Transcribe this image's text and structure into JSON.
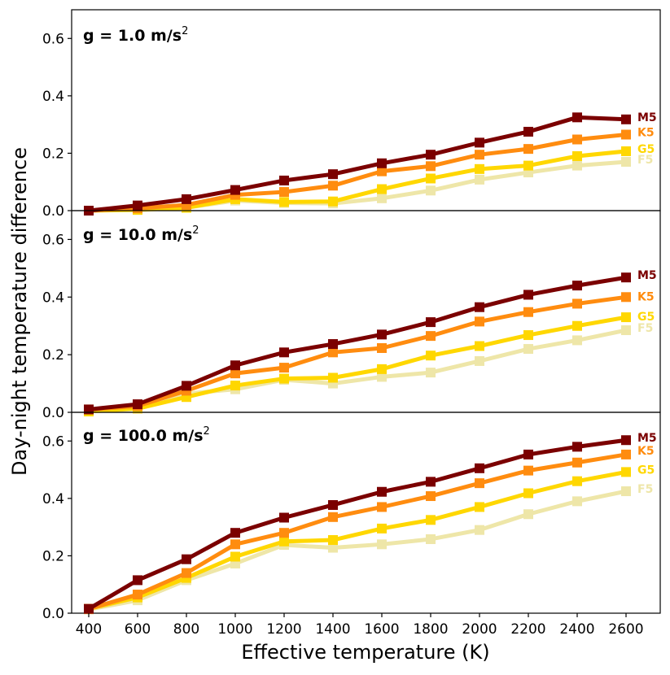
{
  "chart_data": {
    "type": "line",
    "xlabel": "Effective temperature (K)",
    "ylabel": "Day-night temperature difference",
    "x": [
      400,
      600,
      800,
      1000,
      1200,
      1400,
      1600,
      1800,
      2000,
      2200,
      2400,
      2600
    ],
    "x_tick_labels": [
      "400",
      "600",
      "800",
      "1000",
      "1200",
      "1400",
      "1600",
      "1800",
      "2000",
      "2200",
      "2400",
      "2600"
    ],
    "xlim": [
      330,
      2740
    ],
    "ylim": [
      0,
      0.7
    ],
    "y_tick_labels": [
      "0.0",
      "0.2",
      "0.4",
      "0.6"
    ],
    "colors": {
      "M5": "#7b0000",
      "K5": "#ff8c0f",
      "G5": "#ffd700",
      "F5": "#eee6a8"
    },
    "panels": [
      {
        "title_prefix": "g = 1.0 m/s",
        "title_sup": "2",
        "series": [
          {
            "name": "M5",
            "values": [
              0.0,
              0.018,
              0.04,
              0.072,
              0.105,
              0.127,
              0.165,
              0.195,
              0.237,
              0.275,
              0.325,
              0.318
            ]
          },
          {
            "name": "K5",
            "values": [
              0.0,
              0.008,
              0.02,
              0.055,
              0.065,
              0.087,
              0.137,
              0.155,
              0.195,
              0.215,
              0.248,
              0.265
            ]
          },
          {
            "name": "G5",
            "values": [
              0.0,
              0.003,
              0.01,
              0.04,
              0.03,
              0.032,
              0.075,
              0.112,
              0.145,
              0.157,
              0.19,
              0.207
            ]
          },
          {
            "name": "F5",
            "values": [
              0.0,
              0.002,
              0.01,
              0.035,
              0.027,
              0.025,
              0.043,
              0.07,
              0.108,
              0.133,
              0.157,
              0.17
            ]
          }
        ]
      },
      {
        "title_prefix": "g = 10.0 m/s",
        "title_sup": "2",
        "series": [
          {
            "name": "M5",
            "values": [
              0.01,
              0.028,
              0.092,
              0.163,
              0.208,
              0.237,
              0.27,
              0.313,
              0.365,
              0.408,
              0.44,
              0.468
            ]
          },
          {
            "name": "K5",
            "values": [
              0.01,
              0.022,
              0.075,
              0.135,
              0.155,
              0.208,
              0.223,
              0.265,
              0.315,
              0.348,
              0.377,
              0.4
            ]
          },
          {
            "name": "G5",
            "values": [
              0.003,
              0.013,
              0.053,
              0.093,
              0.117,
              0.12,
              0.15,
              0.197,
              0.23,
              0.268,
              0.3,
              0.33
            ]
          },
          {
            "name": "F5",
            "values": [
              0.003,
              0.015,
              0.065,
              0.08,
              0.113,
              0.1,
              0.123,
              0.138,
              0.178,
              0.22,
              0.25,
              0.285
            ]
          }
        ]
      },
      {
        "title_prefix": "g = 100.0 m/s",
        "title_sup": "2",
        "series": [
          {
            "name": "M5",
            "values": [
              0.015,
              0.115,
              0.188,
              0.28,
              0.333,
              0.377,
              0.423,
              0.458,
              0.505,
              0.553,
              0.58,
              0.603
            ]
          },
          {
            "name": "K5",
            "values": [
              0.015,
              0.065,
              0.14,
              0.24,
              0.28,
              0.335,
              0.37,
              0.408,
              0.453,
              0.497,
              0.525,
              0.553
            ]
          },
          {
            "name": "G5",
            "values": [
              0.015,
              0.055,
              0.123,
              0.197,
              0.25,
              0.255,
              0.295,
              0.325,
              0.37,
              0.418,
              0.46,
              0.492
            ]
          },
          {
            "name": "F5",
            "values": [
              0.013,
              0.045,
              0.115,
              0.173,
              0.238,
              0.228,
              0.24,
              0.258,
              0.29,
              0.345,
              0.39,
              0.425
            ]
          }
        ]
      }
    ]
  }
}
